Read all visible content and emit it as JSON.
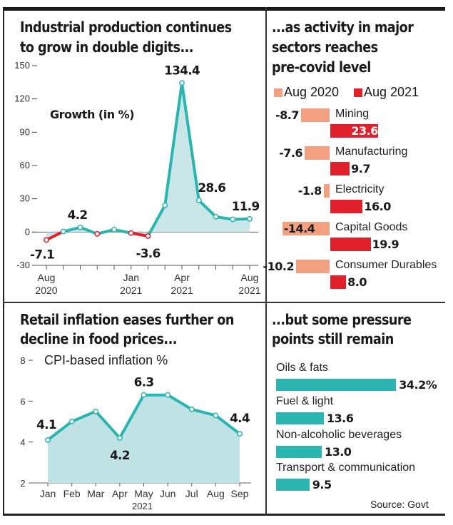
{
  "panels": {
    "ip": {
      "title_line1": "Industrial production continues",
      "title_line2": "to grow in double digits...",
      "subtitle": "Growth (in %)"
    },
    "sectors": {
      "title_line1": "...as activity in major",
      "title_line2": "sectors reaches",
      "title_line3": "pre-covid level"
    },
    "cpi": {
      "title_line1": "Retail inflation eases further on",
      "title_line2": "decline in food prices...",
      "subtitle": "CPI-based inflation %"
    },
    "pressure": {
      "title_line1": "...but some pressure",
      "title_line2": "points still remain",
      "source": "Source: Govt"
    }
  },
  "colors": {
    "teal": "#2bb5b0",
    "teal_fill": "#bfe3e4",
    "red": "#e0202b",
    "salmon": "#f2a07f",
    "dark": "#1a1a1a"
  },
  "chart_data": [
    {
      "type": "line",
      "title": "Industrial production continues to grow in double digits...",
      "ylabel": "Growth (in %)",
      "x": [
        "Aug 2020",
        "Sep 2020",
        "Oct 2020",
        "Nov 2020",
        "Dec 2020",
        "Jan 2021",
        "Feb 2021",
        "Mar 2021",
        "Apr 2021",
        "May 2021",
        "Jun 2021",
        "Jul 2021",
        "Aug 2021"
      ],
      "values": [
        -7.1,
        0.5,
        4.2,
        -1.6,
        2.2,
        -0.9,
        -3.6,
        24.1,
        134.4,
        28.6,
        13.8,
        11.5,
        11.9
      ],
      "labeled_points": [
        {
          "index": 0,
          "text": "-7.1"
        },
        {
          "index": 2,
          "text": "4.2"
        },
        {
          "index": 6,
          "text": "-3.6"
        },
        {
          "index": 8,
          "text": "134.4"
        },
        {
          "index": 9,
          "text": "28.6"
        },
        {
          "index": 12,
          "text": "11.9"
        }
      ],
      "yticks": [
        -30,
        0,
        30,
        60,
        90,
        120,
        150
      ],
      "ylim": [
        -30,
        150
      ],
      "xtick_labels": [
        {
          "index": 0,
          "line1": "Aug",
          "line2": "2020"
        },
        {
          "index": 5,
          "line1": "Jan",
          "line2": "2021"
        },
        {
          "index": 8,
          "line1": "Apr",
          "line2": "2021"
        },
        {
          "index": 12,
          "line1": "Aug",
          "line2": "2021"
        }
      ],
      "negative_color": "red",
      "positive_color": "teal",
      "area_fill": true
    },
    {
      "type": "bar",
      "orientation": "horizontal",
      "title": "...as activity in major sectors reaches pre-covid level",
      "categories": [
        "Mining",
        "Manufacturing",
        "Electricity",
        "Capital Goods",
        "Consumer Durables"
      ],
      "series": [
        {
          "name": "Aug 2020",
          "values": [
            -8.7,
            -7.6,
            -1.8,
            -14.4,
            -10.2
          ],
          "labels": [
            "-8.7",
            "-7.6",
            "-1.8",
            "-14.4",
            "-10.2"
          ]
        },
        {
          "name": "Aug 2021",
          "values": [
            23.6,
            9.7,
            16.0,
            19.9,
            8.0
          ],
          "labels": [
            "23.6",
            "9.7",
            "16.0",
            "19.9",
            "8.0"
          ]
        }
      ],
      "legend": "top"
    },
    {
      "type": "area",
      "title": "Retail inflation eases further on decline in food prices...",
      "ylabel": "CPI-based inflation %",
      "categories": [
        "Jan",
        "Feb",
        "Mar",
        "Apr",
        "May",
        "Jun",
        "Jul",
        "Aug",
        "Sep"
      ],
      "xlabel": "2021",
      "values": [
        4.1,
        5.0,
        5.5,
        4.2,
        6.3,
        6.3,
        5.6,
        5.3,
        4.4
      ],
      "labeled_points": [
        {
          "index": 0,
          "text": "4.1"
        },
        {
          "index": 3,
          "text": "4.2"
        },
        {
          "index": 4,
          "text": "6.3"
        },
        {
          "index": 8,
          "text": "4.4"
        }
      ],
      "yticks": [
        2,
        4,
        6,
        8
      ],
      "ylim": [
        2,
        8
      ]
    },
    {
      "type": "bar",
      "orientation": "horizontal",
      "title": "...but some pressure points still remain",
      "categories": [
        "Oils & fats",
        "Fuel & light",
        "Non-alcoholic beverages",
        "Transport & communication"
      ],
      "values": [
        34.2,
        13.6,
        13.0,
        9.5
      ],
      "labels": [
        "34.2%",
        "13.6",
        "13.0",
        "9.5"
      ],
      "source": "Source: Govt"
    }
  ]
}
